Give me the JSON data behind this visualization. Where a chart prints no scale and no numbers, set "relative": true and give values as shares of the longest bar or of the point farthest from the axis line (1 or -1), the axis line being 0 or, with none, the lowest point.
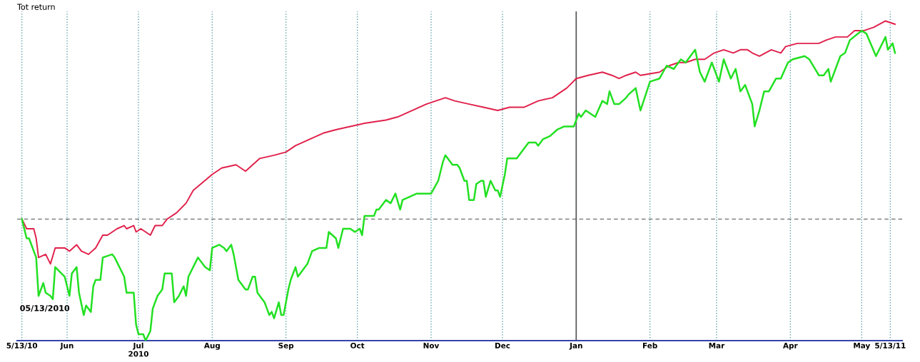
{
  "chart_data": {
    "type": "line",
    "ylabel": "Tot return",
    "relative": true,
    "annotations": [
      "05/13/2010"
    ],
    "xlim": [
      "2010-05-11",
      "2011-05-18"
    ],
    "xticks": [
      {
        "value": "2010-05-13",
        "label": "5/13/10"
      },
      {
        "value": "2010-06-01",
        "label": "Jun"
      },
      {
        "value": "2010-07-01",
        "label": "Jul\n2010"
      },
      {
        "value": "2010-08-01",
        "label": "Aug"
      },
      {
        "value": "2010-09-01",
        "label": "Sep"
      },
      {
        "value": "2010-10-01",
        "label": "Oct"
      },
      {
        "value": "2010-11-01",
        "label": "Nov"
      },
      {
        "value": "2010-12-01",
        "label": "Dec"
      },
      {
        "value": "2011-01-01",
        "label": "Jan"
      },
      {
        "value": "2011-02-01",
        "label": "Feb"
      },
      {
        "value": "2011-03-01",
        "label": "Mar"
      },
      {
        "value": "2011-04-01",
        "label": "Apr"
      },
      {
        "value": "2011-05-01",
        "label": "May"
      },
      {
        "value": "2011-05-13",
        "label": "5/13/11"
      }
    ],
    "grid": "x",
    "legend": false,
    "marker": "none",
    "line_style": "solid",
    "ref_lines": [
      {
        "axis": "y",
        "value": 0.38,
        "color": "#808080",
        "line_style": "dashed"
      },
      {
        "axis": "x",
        "value": "2011-01-01",
        "color": "#555555",
        "line_style": "solid"
      }
    ],
    "series": [
      {
        "color": "#e0204a",
        "x": [
          "2010-05-13",
          "2010-05-15",
          "2010-05-18",
          "2010-05-19",
          "2010-05-20",
          "2010-05-23",
          "2010-05-25",
          "2010-05-27",
          "2010-05-31",
          "2010-06-02",
          "2010-06-05",
          "2010-06-07",
          "2010-06-10",
          "2010-06-13",
          "2010-06-16",
          "2010-06-18",
          "2010-06-22",
          "2010-06-25",
          "2010-06-26",
          "2010-06-29",
          "2010-06-30",
          "2010-07-02",
          "2010-07-06",
          "2010-07-08",
          "2010-07-11",
          "2010-07-13",
          "2010-07-17",
          "2010-07-21",
          "2010-07-24",
          "2010-08-01",
          "2010-08-05",
          "2010-08-11",
          "2010-08-15",
          "2010-08-21",
          "2010-08-27",
          "2010-09-01",
          "2010-09-05",
          "2010-09-11",
          "2010-09-17",
          "2010-09-22",
          "2010-09-28",
          "2010-10-04",
          "2010-10-13",
          "2010-10-18",
          "2010-10-24",
          "2010-10-30",
          "2010-11-07",
          "2010-11-11",
          "2010-11-17",
          "2010-11-23",
          "2010-11-29",
          "2010-12-04",
          "2010-12-10",
          "2010-12-16",
          "2010-12-22",
          "2010-12-28",
          "2011-01-01",
          "2011-01-06",
          "2011-01-12",
          "2011-01-16",
          "2011-01-19",
          "2011-01-22",
          "2011-01-26",
          "2011-01-28",
          "2011-02-05",
          "2011-02-09",
          "2011-02-13",
          "2011-02-16",
          "2011-02-20",
          "2011-02-24",
          "2011-02-28",
          "2011-03-04",
          "2011-03-08",
          "2011-03-11",
          "2011-03-14",
          "2011-03-16",
          "2011-03-19",
          "2011-03-24",
          "2011-03-28",
          "2011-03-30",
          "2011-04-04",
          "2011-04-08",
          "2011-04-13",
          "2011-04-16",
          "2011-04-20",
          "2011-04-25",
          "2011-04-28",
          "2011-05-02",
          "2011-05-06",
          "2011-05-11",
          "2011-05-15"
        ],
        "values": [
          0.38,
          0.35,
          0.35,
          0.32,
          0.26,
          0.27,
          0.24,
          0.29,
          0.29,
          0.28,
          0.3,
          0.28,
          0.27,
          0.29,
          0.33,
          0.33,
          0.35,
          0.36,
          0.35,
          0.36,
          0.34,
          0.35,
          0.33,
          0.36,
          0.36,
          0.38,
          0.4,
          0.43,
          0.47,
          0.52,
          0.54,
          0.55,
          0.53,
          0.57,
          0.58,
          0.59,
          0.61,
          0.63,
          0.65,
          0.66,
          0.67,
          0.68,
          0.69,
          0.7,
          0.72,
          0.74,
          0.76,
          0.75,
          0.74,
          0.73,
          0.72,
          0.73,
          0.73,
          0.75,
          0.76,
          0.79,
          0.82,
          0.83,
          0.84,
          0.83,
          0.82,
          0.83,
          0.84,
          0.83,
          0.84,
          0.86,
          0.87,
          0.87,
          0.88,
          0.88,
          0.9,
          0.91,
          0.9,
          0.91,
          0.91,
          0.9,
          0.89,
          0.91,
          0.9,
          0.92,
          0.93,
          0.93,
          0.93,
          0.94,
          0.95,
          0.95,
          0.97,
          0.97,
          0.98,
          1.0,
          0.99
        ]
      },
      {
        "color": "#22e022",
        "x": [
          "2010-05-13",
          "2010-05-15",
          "2010-05-16",
          "2010-05-18",
          "2010-05-19",
          "2010-05-20",
          "2010-05-22",
          "2010-05-23",
          "2010-05-25",
          "2010-05-26",
          "2010-05-27",
          "2010-05-31",
          "2010-06-02",
          "2010-06-03",
          "2010-06-05",
          "2010-06-06",
          "2010-06-08",
          "2010-06-09",
          "2010-06-11",
          "2010-06-12",
          "2010-06-13",
          "2010-06-15",
          "2010-06-16",
          "2010-06-20",
          "2010-06-21",
          "2010-06-25",
          "2010-06-26",
          "2010-06-29",
          "2010-06-30",
          "2010-07-01",
          "2010-07-03",
          "2010-07-04",
          "2010-07-06",
          "2010-07-07",
          "2010-07-09",
          "2010-07-11",
          "2010-07-12",
          "2010-07-15",
          "2010-07-16",
          "2010-07-18",
          "2010-07-20",
          "2010-07-21",
          "2010-07-22",
          "2010-07-26",
          "2010-07-29",
          "2010-07-31",
          "2010-08-01",
          "2010-08-04",
          "2010-08-06",
          "2010-08-07",
          "2010-08-09",
          "2010-08-10",
          "2010-08-12",
          "2010-08-15",
          "2010-08-16",
          "2010-08-18",
          "2010-08-19",
          "2010-08-20",
          "2010-08-23",
          "2010-08-25",
          "2010-08-26",
          "2010-08-27",
          "2010-08-29",
          "2010-08-30",
          "2010-08-31",
          "2010-09-02",
          "2010-09-03",
          "2010-09-05",
          "2010-09-06",
          "2010-09-08",
          "2010-09-10",
          "2010-09-12",
          "2010-09-15",
          "2010-09-18",
          "2010-09-19",
          "2010-09-22",
          "2010-09-23",
          "2010-09-25",
          "2010-09-26",
          "2010-09-28",
          "2010-09-30",
          "2010-10-02",
          "2010-10-03",
          "2010-10-04",
          "2010-10-08",
          "2010-10-09",
          "2010-10-10",
          "2010-10-13",
          "2010-10-15",
          "2010-10-17",
          "2010-10-19",
          "2010-10-20",
          "2010-10-26",
          "2010-10-28",
          "2010-11-01",
          "2010-11-04",
          "2010-11-06",
          "2010-11-07",
          "2010-11-10",
          "2010-11-12",
          "2010-11-13",
          "2010-11-15",
          "2010-11-16",
          "2010-11-17",
          "2010-11-19",
          "2010-11-20",
          "2010-11-22",
          "2010-11-23",
          "2010-11-24",
          "2010-11-26",
          "2010-11-28",
          "2010-11-29",
          "2010-11-30",
          "2010-12-02",
          "2010-12-03",
          "2010-12-05",
          "2010-12-07",
          "2010-12-12",
          "2010-12-15",
          "2010-12-16",
          "2010-12-18",
          "2010-12-21",
          "2010-12-24",
          "2010-12-27",
          "2010-12-31",
          "2011-01-02",
          "2011-01-03",
          "2011-01-05",
          "2011-01-09",
          "2011-01-12",
          "2011-01-14",
          "2011-01-15",
          "2011-01-17",
          "2011-01-19",
          "2011-01-22",
          "2011-01-23",
          "2011-01-26",
          "2011-01-28",
          "2011-02-01",
          "2011-02-05",
          "2011-02-08",
          "2011-02-11",
          "2011-02-14",
          "2011-02-16",
          "2011-02-20",
          "2011-02-22",
          "2011-02-24",
          "2011-02-27",
          "2011-03-02",
          "2011-03-04",
          "2011-03-07",
          "2011-03-09",
          "2011-03-11",
          "2011-03-13",
          "2011-03-16",
          "2011-03-17",
          "2011-03-19",
          "2011-03-21",
          "2011-03-23",
          "2011-03-26",
          "2011-03-28",
          "2011-03-31",
          "2011-04-02",
          "2011-04-07",
          "2011-04-09",
          "2011-04-13",
          "2011-04-15",
          "2011-04-17",
          "2011-04-18",
          "2011-04-22",
          "2011-04-24",
          "2011-04-26",
          "2011-05-01",
          "2011-05-03",
          "2011-05-07",
          "2011-05-11",
          "2011-05-12",
          "2011-05-14",
          "2011-05-15"
        ],
        "values": [
          0.38,
          0.32,
          0.32,
          0.28,
          0.26,
          0.14,
          0.18,
          0.15,
          0.14,
          0.13,
          0.23,
          0.2,
          0.14,
          0.21,
          0.23,
          0.15,
          0.08,
          0.11,
          0.09,
          0.17,
          0.19,
          0.19,
          0.26,
          0.27,
          0.26,
          0.2,
          0.15,
          0.15,
          0.05,
          0.02,
          0.02,
          0.0,
          0.03,
          0.1,
          0.14,
          0.16,
          0.21,
          0.21,
          0.12,
          0.14,
          0.17,
          0.14,
          0.2,
          0.26,
          0.23,
          0.22,
          0.29,
          0.3,
          0.29,
          0.28,
          0.3,
          0.27,
          0.19,
          0.16,
          0.16,
          0.2,
          0.2,
          0.15,
          0.12,
          0.08,
          0.09,
          0.07,
          0.12,
          0.08,
          0.08,
          0.16,
          0.19,
          0.23,
          0.2,
          0.22,
          0.24,
          0.28,
          0.29,
          0.29,
          0.34,
          0.32,
          0.29,
          0.35,
          0.35,
          0.35,
          0.34,
          0.35,
          0.33,
          0.39,
          0.39,
          0.41,
          0.41,
          0.44,
          0.43,
          0.46,
          0.41,
          0.44,
          0.46,
          0.46,
          0.46,
          0.5,
          0.56,
          0.58,
          0.55,
          0.55,
          0.54,
          0.5,
          0.5,
          0.44,
          0.44,
          0.49,
          0.5,
          0.5,
          0.45,
          0.5,
          0.47,
          0.47,
          0.45,
          0.52,
          0.57,
          0.57,
          0.57,
          0.62,
          0.62,
          0.61,
          0.63,
          0.64,
          0.66,
          0.67,
          0.67,
          0.71,
          0.7,
          0.72,
          0.7,
          0.75,
          0.74,
          0.78,
          0.74,
          0.74,
          0.76,
          0.77,
          0.79,
          0.72,
          0.81,
          0.82,
          0.86,
          0.85,
          0.88,
          0.87,
          0.91,
          0.84,
          0.81,
          0.87,
          0.81,
          0.88,
          0.82,
          0.85,
          0.78,
          0.8,
          0.74,
          0.67,
          0.72,
          0.78,
          0.78,
          0.82,
          0.82,
          0.87,
          0.88,
          0.89,
          0.88,
          0.83,
          0.83,
          0.85,
          0.81,
          0.89,
          0.9,
          0.94,
          0.97,
          0.96,
          0.89,
          0.95,
          0.91,
          0.93,
          0.9
        ]
      }
    ]
  }
}
